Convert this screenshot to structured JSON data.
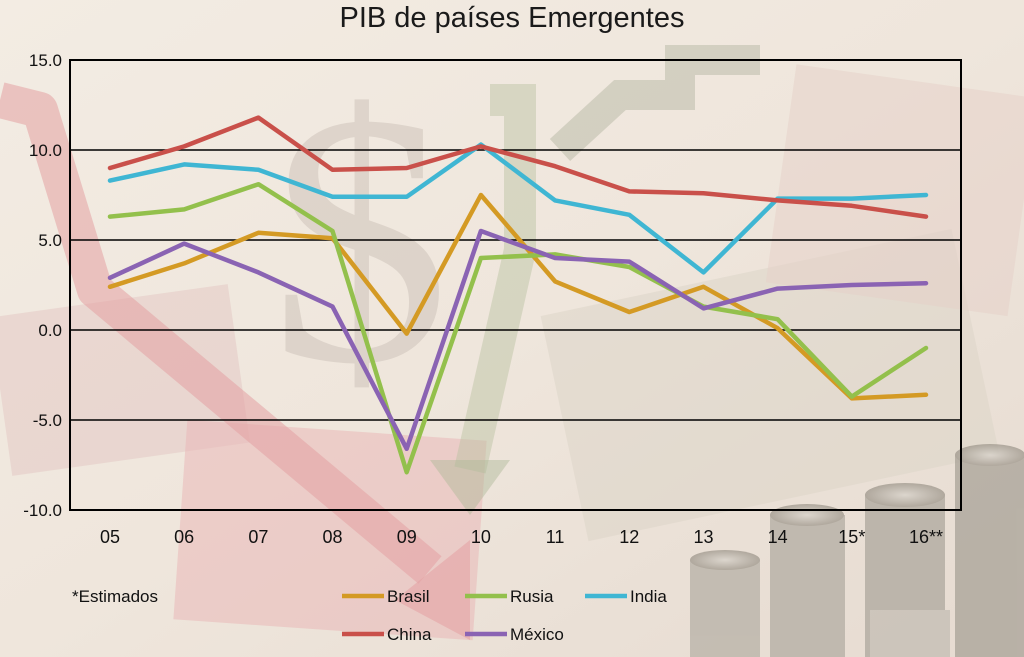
{
  "chart_data": {
    "type": "line",
    "title": "PIB de países Emergentes",
    "categories": [
      "05",
      "06",
      "07",
      "08",
      "09",
      "10",
      "11",
      "12",
      "13",
      "14",
      "15*",
      "16**"
    ],
    "y_tick_labels": [
      "15.0",
      "10.0",
      "5.0",
      "0.0",
      "-5.0",
      "-10.0"
    ],
    "ylim": [
      -10,
      15
    ],
    "grid": true,
    "note": "*Estimados",
    "series": [
      {
        "name": "Brasil",
        "color": "#d49a24",
        "values": [
          2.4,
          3.7,
          5.4,
          5.1,
          -0.2,
          7.5,
          2.7,
          1.0,
          2.4,
          0.1,
          -3.8,
          -3.6
        ]
      },
      {
        "name": "Rusia",
        "color": "#93c04c",
        "values": [
          6.3,
          6.7,
          8.1,
          5.5,
          -7.9,
          4.0,
          4.2,
          3.5,
          1.3,
          0.6,
          -3.7,
          -1.0
        ]
      },
      {
        "name": "India",
        "color": "#3fb6d3",
        "values": [
          8.3,
          9.2,
          8.9,
          7.4,
          7.4,
          10.3,
          7.2,
          6.4,
          3.2,
          7.3,
          7.3,
          7.5
        ]
      },
      {
        "name": "China",
        "color": "#c9504a",
        "values": [
          9.0,
          10.2,
          11.8,
          8.9,
          9.0,
          10.2,
          9.1,
          7.7,
          7.6,
          7.2,
          6.9,
          6.3
        ]
      },
      {
        "name": "México",
        "color": "#8a63b3",
        "values": [
          2.9,
          4.8,
          3.2,
          1.3,
          -6.6,
          5.5,
          4.0,
          3.8,
          1.2,
          2.3,
          2.5,
          2.6
        ]
      }
    ]
  }
}
